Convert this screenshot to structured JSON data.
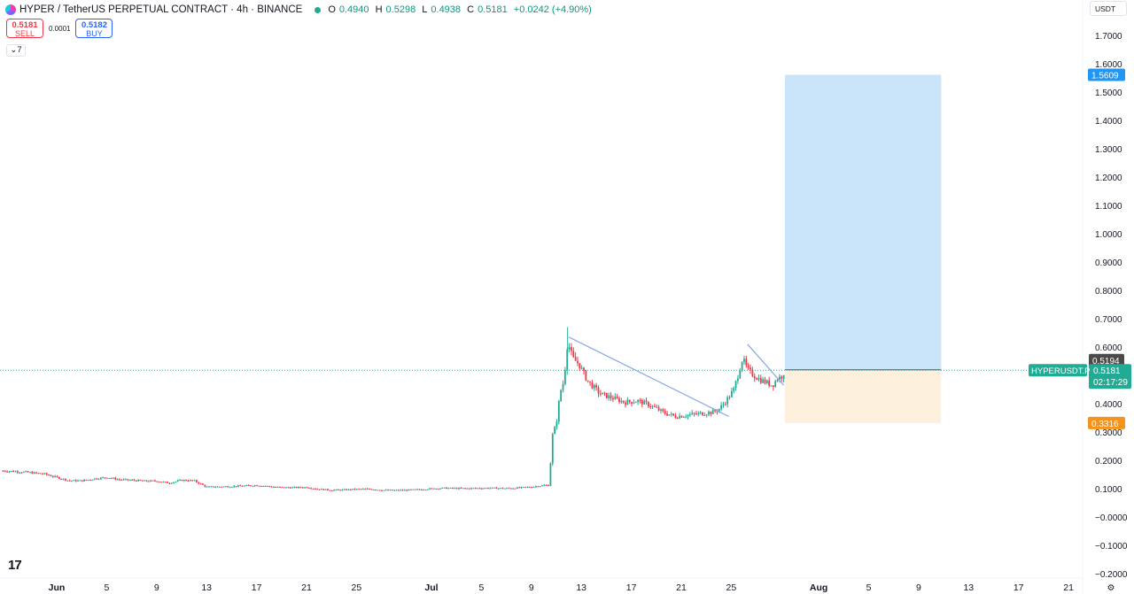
{
  "header": {
    "symbol_title": "HYPER / TetherUS PERPETUAL CONTRACT · 4h · BINANCE",
    "ohlc": {
      "o_label": "O",
      "o": "0.4940",
      "h_label": "H",
      "h": "0.5298",
      "l_label": "L",
      "l": "0.4938",
      "c_label": "C",
      "c": "0.5181",
      "change": "+0.0242 (+4.90%)"
    }
  },
  "trade": {
    "sell_price": "0.5181",
    "sell_label": "SELL",
    "spread": "0.0001",
    "buy_price": "0.5182",
    "buy_label": "BUY"
  },
  "indicator_toggle": "7",
  "currency": "USDT",
  "logo": "17",
  "colors": {
    "up": "#22ab94",
    "down": "#f23645",
    "trend": "#8fa9e8",
    "target_zone": "#c9e3f9",
    "stop_zone": "#fdf0dd",
    "badge_target": "#2196f3",
    "badge_stop": "#f7931a",
    "badge_price": "#22ab94",
    "badge_entry": "#4a4a4a"
  },
  "chart_data": {
    "type": "candlestick",
    "interval": "4h",
    "ylim": [
      -0.22,
      1.78
    ],
    "y_ticks": [
      "1.7000",
      "1.6000",
      "1.5000",
      "1.4000",
      "1.3000",
      "1.2000",
      "1.1000",
      "1.0000",
      "0.9000",
      "0.8000",
      "0.7000",
      "0.6000",
      "0.5000",
      "0.4000",
      "0.3000",
      "0.2000",
      "0.1000",
      "−0.0000",
      "−0.1000",
      "−0.2000"
    ],
    "y_tick_values": [
      1.7,
      1.6,
      1.5,
      1.4,
      1.3,
      1.2,
      1.1,
      1.0,
      0.9,
      0.8,
      0.7,
      0.6,
      0.5,
      0.4,
      0.3,
      0.2,
      0.1,
      0.0,
      -0.1,
      -0.2
    ],
    "x_ticks": [
      {
        "label": "Jun",
        "day": 1
      },
      {
        "label": "5",
        "day": 5
      },
      {
        "label": "9",
        "day": 9
      },
      {
        "label": "13",
        "day": 13
      },
      {
        "label": "17",
        "day": 17
      },
      {
        "label": "21",
        "day": 21
      },
      {
        "label": "25",
        "day": 25
      },
      {
        "label": "Jul",
        "day": 31
      },
      {
        "label": "5",
        "day": 35
      },
      {
        "label": "9",
        "day": 39
      },
      {
        "label": "13",
        "day": 43
      },
      {
        "label": "17",
        "day": 47
      },
      {
        "label": "21",
        "day": 51
      },
      {
        "label": "25",
        "day": 55
      },
      {
        "label": "Aug",
        "day": 62
      },
      {
        "label": "5",
        "day": 66
      },
      {
        "label": "9",
        "day": 70
      },
      {
        "label": "13",
        "day": 74
      },
      {
        "label": "17",
        "day": 78
      },
      {
        "label": "21",
        "day": 82
      }
    ],
    "price_path": [
      [
        -3.3,
        0.163
      ],
      [
        -2,
        0.16
      ],
      [
        0,
        0.152
      ],
      [
        1,
        0.14
      ],
      [
        2,
        0.128
      ],
      [
        3,
        0.128
      ],
      [
        4,
        0.135
      ],
      [
        5,
        0.14
      ],
      [
        6,
        0.132
      ],
      [
        7,
        0.13
      ],
      [
        8,
        0.127
      ],
      [
        9,
        0.127
      ],
      [
        10,
        0.12
      ],
      [
        11,
        0.13
      ],
      [
        12,
        0.128
      ],
      [
        13,
        0.106
      ],
      [
        14,
        0.107
      ],
      [
        15,
        0.108
      ],
      [
        16,
        0.11
      ],
      [
        17,
        0.112
      ],
      [
        18,
        0.108
      ],
      [
        19,
        0.104
      ],
      [
        20,
        0.104
      ],
      [
        21,
        0.105
      ],
      [
        22,
        0.098
      ],
      [
        23,
        0.095
      ],
      [
        24,
        0.096
      ],
      [
        25,
        0.098
      ],
      [
        26,
        0.099
      ],
      [
        27,
        0.095
      ],
      [
        28,
        0.094
      ],
      [
        29,
        0.095
      ],
      [
        30,
        0.097
      ],
      [
        31,
        0.1
      ],
      [
        32,
        0.102
      ],
      [
        33,
        0.101
      ],
      [
        34,
        0.101
      ],
      [
        35,
        0.102
      ],
      [
        36,
        0.102
      ],
      [
        37,
        0.101
      ],
      [
        38,
        0.103
      ],
      [
        39,
        0.106
      ],
      [
        40,
        0.112
      ],
      [
        40.4,
        0.112
      ],
      [
        40.7,
        0.29
      ],
      [
        41.0,
        0.33
      ],
      [
        41.3,
        0.44
      ],
      [
        41.6,
        0.48
      ],
      [
        41.9,
        0.62
      ],
      [
        42.3,
        0.56
      ],
      [
        42.8,
        0.54
      ],
      [
        43.5,
        0.48
      ],
      [
        44.5,
        0.435
      ],
      [
        45.5,
        0.42
      ],
      [
        46.5,
        0.405
      ],
      [
        47.5,
        0.41
      ],
      [
        48.5,
        0.395
      ],
      [
        49.5,
        0.37
      ],
      [
        50.5,
        0.355
      ],
      [
        51.5,
        0.36
      ],
      [
        52.5,
        0.365
      ],
      [
        53.5,
        0.37
      ],
      [
        54,
        0.38
      ],
      [
        54.6,
        0.41
      ],
      [
        55.2,
        0.45
      ],
      [
        55.6,
        0.51
      ],
      [
        55.9,
        0.56
      ],
      [
        56.3,
        0.52
      ],
      [
        56.8,
        0.5
      ],
      [
        57.3,
        0.485
      ],
      [
        57.8,
        0.475
      ],
      [
        58.3,
        0.465
      ],
      [
        58.7,
        0.49
      ],
      [
        59.0,
        0.494
      ],
      [
        59.3,
        0.518
      ]
    ],
    "spike_high": 0.67,
    "trendlines": [
      {
        "from": [
          42.0,
          0.635
        ],
        "to": [
          54.8,
          0.355
        ]
      },
      {
        "from": [
          56.3,
          0.61
        ],
        "to": [
          59.2,
          0.465
        ]
      }
    ],
    "position": {
      "type": "long",
      "entry": 0.5194,
      "target": 1.5609,
      "stop": 0.3316,
      "start_day": 59.3,
      "end_day": 71.8
    },
    "last_price": 0.5181,
    "badges": {
      "target": "1.5609",
      "entry": "0.5194",
      "price": "0.5181",
      "countdown": "02:17:29",
      "stop": "0.3316",
      "symbol": "HYPERUSDT.P"
    }
  }
}
